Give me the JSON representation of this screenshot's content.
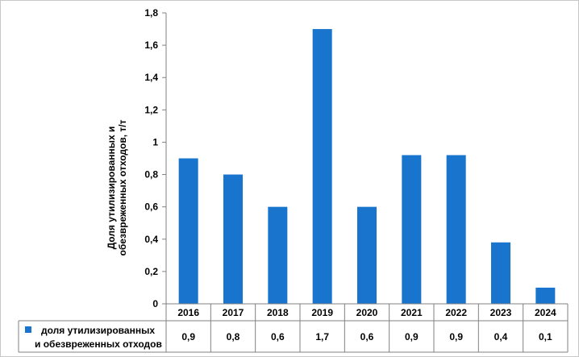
{
  "chart_data": {
    "type": "bar",
    "categories": [
      "2016",
      "2017",
      "2018",
      "2019",
      "2020",
      "2021",
      "2022",
      "2023",
      "2024"
    ],
    "series": [
      {
        "name": "доля утилизированных и обезвреженных отходов",
        "name_lines": [
          "доля утилизированных",
          "и обезвреженных отходов"
        ],
        "values": [
          0.9,
          0.8,
          0.6,
          1.7,
          0.6,
          0.92,
          0.92,
          0.38,
          0.1
        ],
        "table_labels": [
          "0,9",
          "0,8",
          "0,6",
          "1,7",
          "0,6",
          "0,9",
          "0,9",
          "0,4",
          "0,1"
        ],
        "color": "#1874CD"
      }
    ],
    "ylabel_lines": [
      "Доля утилизированных и",
      "обезвреженных отходов, т/т"
    ],
    "yticks": [
      0,
      0.2,
      0.4,
      0.6,
      0.8,
      1,
      1.2,
      1.4,
      1.6,
      1.8
    ],
    "ytick_labels": [
      "0",
      "0,2",
      "0,4",
      "0,6",
      "0,8",
      "1",
      "1,2",
      "1,4",
      "1,6",
      "1,8"
    ],
    "ylim": [
      0,
      1.8
    ],
    "grid": false,
    "legend": "data-table-bottom"
  }
}
